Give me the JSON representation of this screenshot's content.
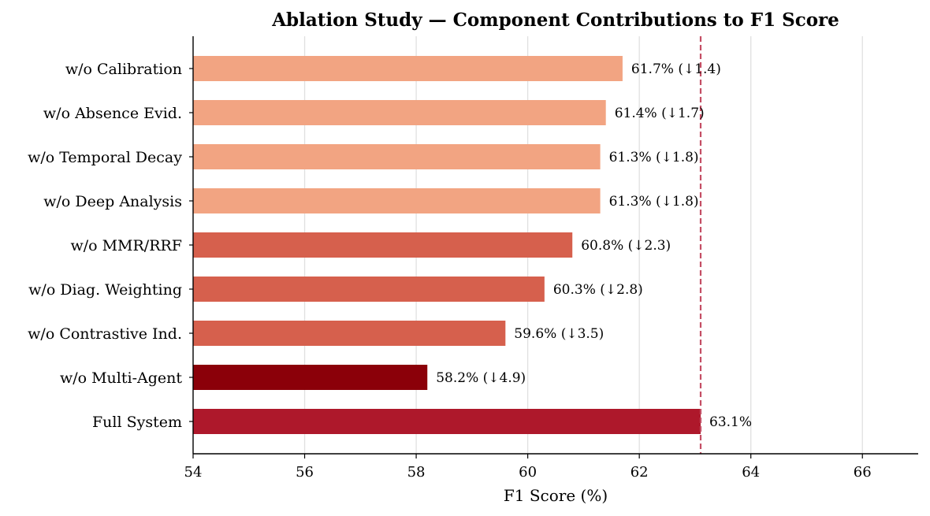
{
  "chart_data": {
    "type": "bar",
    "orientation": "horizontal",
    "title": "Ablation Study — Component Contributions to F1 Score",
    "xlabel": "F1 Score (%)",
    "ylabel": "",
    "xlim": [
      54,
      67
    ],
    "xticks": [
      54,
      56,
      58,
      60,
      62,
      64,
      66
    ],
    "grid": "vertical",
    "reference_line": {
      "value": 63.1,
      "style": "dashed",
      "color": "#c44e64"
    },
    "bars": [
      {
        "label": "w/o Calibration",
        "value": 61.7,
        "annotation": "61.7% (↓1.4)",
        "color": "#f2a482"
      },
      {
        "label": "w/o Absence Evid.",
        "value": 61.4,
        "annotation": "61.4% (↓1.7)",
        "color": "#f2a482"
      },
      {
        "label": "w/o Temporal Decay",
        "value": 61.3,
        "annotation": "61.3% (↓1.8)",
        "color": "#f2a482"
      },
      {
        "label": "w/o Deep Analysis",
        "value": 61.3,
        "annotation": "61.3% (↓1.8)",
        "color": "#f2a482"
      },
      {
        "label": "w/o MMR/RRF",
        "value": 60.8,
        "annotation": "60.8% (↓2.3)",
        "color": "#d6604d"
      },
      {
        "label": "w/o Diag. Weighting",
        "value": 60.3,
        "annotation": "60.3% (↓2.8)",
        "color": "#d6604d"
      },
      {
        "label": "w/o Contrastive Ind.",
        "value": 59.6,
        "annotation": "59.6% (↓3.5)",
        "color": "#d6604d"
      },
      {
        "label": "w/o Multi-Agent",
        "value": 58.2,
        "annotation": "58.2% (↓4.9)",
        "color": "#8b0009"
      },
      {
        "label": "Full System",
        "value": 63.1,
        "annotation": "63.1%",
        "color": "#ae182b"
      }
    ]
  }
}
